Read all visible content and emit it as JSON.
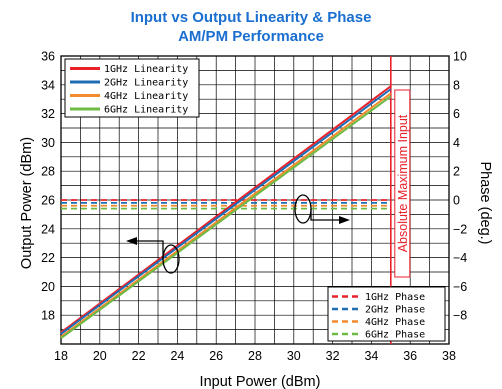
{
  "chart_data": {
    "type": "line",
    "title_line1": "Input vs Output Linearity & Phase",
    "title_line2": "AM/PM Performance",
    "title_color": "#1a6fd0",
    "xlabel": "Input Power (dBm)",
    "ylabel_left": "Output Power (dBm)",
    "ylabel_right": "Phase (deg.)",
    "xlim": [
      18,
      38
    ],
    "ylim_left": [
      16,
      36
    ],
    "ylim_right": [
      -10,
      10
    ],
    "x_ticks": [
      "18",
      "20",
      "22",
      "24",
      "26",
      "28",
      "30",
      "32",
      "34",
      "36",
      "38"
    ],
    "y_left_ticks": [
      "18",
      "20",
      "22",
      "24",
      "26",
      "28",
      "30",
      "32",
      "34",
      "36"
    ],
    "y_right_ticks": [
      "−8",
      "−6",
      "−4",
      "−2",
      "0",
      "2",
      "4",
      "6",
      "8",
      "10"
    ],
    "grid": true,
    "linearity_legend_position": "top-left",
    "phase_legend_position": "bottom-right",
    "linearity_series": [
      {
        "name": "1GHz Linearity",
        "color": "#e8212b",
        "x": [
          18,
          35
        ],
        "y": [
          16.8,
          33.9
        ]
      },
      {
        "name": "2GHz Linearity",
        "color": "#1f6eb5",
        "x": [
          18,
          35
        ],
        "y": [
          16.7,
          33.7
        ]
      },
      {
        "name": "4GHz Linearity",
        "color": "#f28a2e",
        "x": [
          18,
          35
        ],
        "y": [
          16.5,
          33.4
        ]
      },
      {
        "name": "6GHz Linearity",
        "color": "#6dbb45",
        "x": [
          18,
          35
        ],
        "y": [
          16.4,
          33.2
        ]
      }
    ],
    "phase_series": [
      {
        "name": "1GHz Phase",
        "color": "#e8212b",
        "x": [
          18,
          35
        ],
        "y": [
          0.0,
          0.0
        ]
      },
      {
        "name": "2GHz Phase",
        "color": "#1f6eb5",
        "x": [
          18,
          35
        ],
        "y": [
          -0.2,
          -0.2
        ]
      },
      {
        "name": "4GHz Phase",
        "color": "#f28a2e",
        "x": [
          18,
          35
        ],
        "y": [
          -0.4,
          -0.4
        ]
      },
      {
        "name": "6GHz Phase",
        "color": "#6dbb45",
        "x": [
          18,
          35
        ],
        "y": [
          -0.6,
          -0.6
        ]
      }
    ],
    "limit_line": {
      "x": 35,
      "label": "Absolute Maximum Input",
      "color": "#e8212b"
    }
  }
}
